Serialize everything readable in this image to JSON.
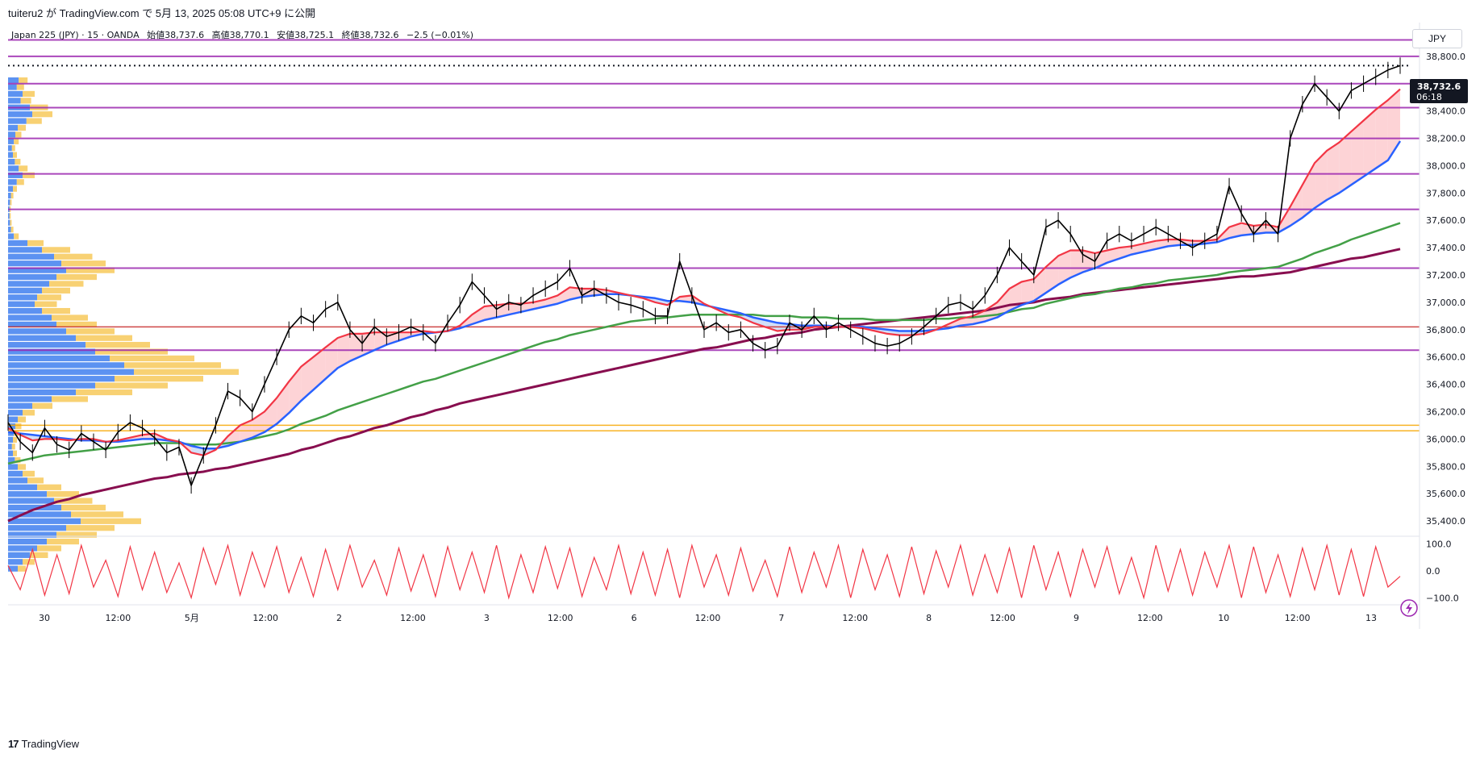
{
  "header": {
    "text": "tuiteru2 が TradingView.com で 5月 13, 2025 05:08 UTC+9 に公開"
  },
  "legend": {
    "symbol": "Japan 225 (JPY) · 15 · OANDA",
    "open": "始値38,737.6",
    "high": "高値38,770.1",
    "low": "安値38,725.1",
    "close": "終値38,732.6",
    "change": "−2.5 (−0.01%)"
  },
  "currency": "JPY",
  "price_tag": {
    "price": "38,732.6",
    "countdown": "06:18"
  },
  "footer": {
    "brand": "TradingView",
    "logo_icon": "tradingview-logo-icon"
  },
  "colors": {
    "candle": "#000000",
    "ema_fast": "#f23645",
    "ema_mid": "#2962ff",
    "ema_slow": "#43a047",
    "ema_long": "#880e4f",
    "hline": "#9c27b0",
    "oscillator": "#f23645",
    "fill_up": "#fcc8cc",
    "fill_down": "#c6d7f5",
    "vp_up": "#4a86f0",
    "vp_down": "#f7c95a"
  },
  "chart_data": [
    {
      "type": "line",
      "panel": "price",
      "ylim": [
        35300,
        39000
      ],
      "y_ticks": [
        "38,800.0",
        "38,600.0",
        "38,400.0",
        "38,200.0",
        "38,000.0",
        "37,800.0",
        "37,600.0",
        "37,400.0",
        "37,200.0",
        "37,000.0",
        "36,800.0",
        "36,600.0",
        "36,400.0",
        "36,200.0",
        "36,000.0",
        "35,800.0",
        "35,600.0",
        "35,400.0"
      ],
      "x_labels": [
        "30",
        "12:00",
        "5月",
        "12:00",
        "2",
        "12:00",
        "3",
        "12:00",
        "6",
        "12:00",
        "7",
        "12:00",
        "8",
        "12:00",
        "9",
        "12:00",
        "10",
        "12:00",
        "13"
      ],
      "horizontal_lines": [
        38920,
        38800,
        38600,
        38425,
        38200,
        37940,
        37680,
        37250,
        36820,
        36650,
        36100,
        36060
      ],
      "last_price": 38732.6,
      "series": [
        {
          "name": "",
          "role": "price",
          "values": [
            36120,
            35980,
            35900,
            36080,
            35960,
            35920,
            36040,
            35980,
            35920,
            36050,
            36120,
            36080,
            36010,
            35900,
            35940,
            35660,
            35880,
            36100,
            36350,
            36300,
            36200,
            36400,
            36600,
            36800,
            36900,
            36850,
            36950,
            37000,
            36800,
            36700,
            36820,
            36750,
            36780,
            36820,
            36780,
            36700,
            36850,
            36980,
            37150,
            37050,
            36950,
            37000,
            36980,
            37050,
            37100,
            37150,
            37250,
            37050,
            37100,
            37050,
            37000,
            36980,
            36950,
            36900,
            36900,
            37300,
            37050,
            36800,
            36850,
            36780,
            36800,
            36700,
            36650,
            36680,
            36850,
            36800,
            36900,
            36800,
            36850,
            36800,
            36750,
            36700,
            36680,
            36700,
            36750,
            36820,
            36900,
            36980,
            37000,
            36950,
            37050,
            37200,
            37400,
            37300,
            37200,
            37550,
            37600,
            37500,
            37350,
            37300,
            37450,
            37500,
            37450,
            37500,
            37550,
            37500,
            37450,
            37400,
            37450,
            37500,
            37850,
            37650,
            37500,
            37600,
            37500,
            38200,
            38450,
            38600,
            38500,
            38400,
            38550,
            38600,
            38650,
            38700,
            38732
          ]
        },
        {
          "name": "",
          "role": "ema_fast",
          "values": [
            36080,
            36030,
            35990,
            36000,
            36000,
            35990,
            36000,
            36000,
            35980,
            35990,
            36010,
            36030,
            36040,
            36000,
            35980,
            35900,
            35880,
            35920,
            36020,
            36100,
            36140,
            36200,
            36300,
            36420,
            36530,
            36600,
            36670,
            36740,
            36770,
            36770,
            36780,
            36780,
            36780,
            36780,
            36790,
            36780,
            36790,
            36830,
            36910,
            36970,
            36980,
            36990,
            36990,
            37000,
            37020,
            37050,
            37110,
            37100,
            37100,
            37090,
            37070,
            37050,
            37030,
            37000,
            36980,
            37040,
            37050,
            36990,
            36950,
            36910,
            36890,
            36850,
            36820,
            36790,
            36800,
            36800,
            36820,
            36820,
            36820,
            36820,
            36810,
            36790,
            36770,
            36760,
            36760,
            36770,
            36800,
            36840,
            36880,
            36900,
            36940,
            37000,
            37100,
            37150,
            37170,
            37260,
            37340,
            37380,
            37380,
            37360,
            37380,
            37400,
            37410,
            37430,
            37450,
            37460,
            37460,
            37450,
            37450,
            37460,
            37550,
            37580,
            37560,
            37570,
            37550,
            37700,
            37860,
            38020,
            38110,
            38170,
            38250,
            38330,
            38410,
            38480,
            38560
          ]
        },
        {
          "name": "",
          "role": "ema_mid",
          "values": [
            36050,
            36040,
            36030,
            36020,
            36010,
            36000,
            35990,
            35990,
            35980,
            35980,
            35990,
            36000,
            36000,
            35990,
            35980,
            35950,
            35930,
            35930,
            35950,
            35980,
            36010,
            36050,
            36110,
            36190,
            36280,
            36360,
            36440,
            36520,
            36570,
            36610,
            36650,
            36690,
            36720,
            36750,
            36770,
            36780,
            36790,
            36810,
            36840,
            36870,
            36890,
            36910,
            36930,
            36950,
            36970,
            36990,
            37020,
            37040,
            37050,
            37060,
            37060,
            37050,
            37040,
            37030,
            37010,
            37010,
            37000,
            36980,
            36960,
            36940,
            36920,
            36890,
            36870,
            36850,
            36840,
            36830,
            36830,
            36830,
            36820,
            36820,
            36820,
            36810,
            36800,
            36790,
            36790,
            36790,
            36800,
            36810,
            36830,
            36840,
            36860,
            36890,
            36940,
            36980,
            37010,
            37070,
            37130,
            37180,
            37220,
            37250,
            37290,
            37320,
            37350,
            37370,
            37390,
            37410,
            37420,
            37420,
            37430,
            37440,
            37470,
            37490,
            37500,
            37510,
            37510,
            37560,
            37620,
            37690,
            37750,
            37800,
            37860,
            37920,
            37980,
            38040,
            38180
          ]
        },
        {
          "name": "",
          "role": "ema_slow",
          "values": [
            35820,
            35840,
            35860,
            35880,
            35890,
            35900,
            35910,
            35920,
            35930,
            35940,
            35950,
            35960,
            35970,
            35970,
            35970,
            35960,
            35960,
            35960,
            35970,
            35980,
            36000,
            36020,
            36040,
            36070,
            36110,
            36140,
            36170,
            36210,
            36240,
            36270,
            36300,
            36330,
            36360,
            36390,
            36420,
            36440,
            36470,
            36500,
            36530,
            36560,
            36590,
            36620,
            36650,
            36680,
            36710,
            36730,
            36760,
            36780,
            36800,
            36820,
            36840,
            36860,
            36870,
            36880,
            36890,
            36900,
            36910,
            36910,
            36910,
            36910,
            36910,
            36910,
            36900,
            36900,
            36900,
            36890,
            36890,
            36890,
            36880,
            36880,
            36880,
            36870,
            36870,
            36870,
            36870,
            36870,
            36880,
            36880,
            36890,
            36890,
            36900,
            36910,
            36930,
            36950,
            36960,
            36990,
            37010,
            37030,
            37050,
            37060,
            37080,
            37100,
            37110,
            37130,
            37140,
            37160,
            37170,
            37180,
            37190,
            37200,
            37220,
            37230,
            37240,
            37250,
            37260,
            37290,
            37320,
            37360,
            37390,
            37420,
            37460,
            37490,
            37520,
            37550,
            37580
          ]
        },
        {
          "name": "",
          "role": "ema_long",
          "values": [
            35400,
            35440,
            35480,
            35510,
            35540,
            35560,
            35590,
            35610,
            35630,
            35650,
            35670,
            35690,
            35710,
            35720,
            35740,
            35750,
            35760,
            35780,
            35790,
            35810,
            35830,
            35850,
            35870,
            35890,
            35920,
            35940,
            35970,
            36000,
            36020,
            36050,
            36080,
            36100,
            36130,
            36160,
            36180,
            36210,
            36230,
            36260,
            36280,
            36300,
            36320,
            36340,
            36360,
            36380,
            36400,
            36420,
            36440,
            36460,
            36480,
            36500,
            36520,
            36540,
            36560,
            36580,
            36600,
            36620,
            36640,
            36660,
            36670,
            36690,
            36710,
            36730,
            36740,
            36760,
            36770,
            36780,
            36800,
            36810,
            36820,
            36830,
            36840,
            36850,
            36860,
            36870,
            36880,
            36890,
            36900,
            36910,
            36920,
            36930,
            36940,
            36960,
            36980,
            36990,
            37000,
            37020,
            37030,
            37040,
            37060,
            37070,
            37080,
            37090,
            37100,
            37110,
            37120,
            37130,
            37140,
            37150,
            37160,
            37170,
            37180,
            37190,
            37190,
            37200,
            37210,
            37220,
            37240,
            37260,
            37280,
            37300,
            37320,
            37330,
            37350,
            37370,
            37390
          ]
        }
      ]
    },
    {
      "type": "line",
      "panel": "oscillator",
      "ylim": [
        -120,
        120
      ],
      "y_ticks": [
        "100.0",
        "0.0",
        "−100.0"
      ],
      "series": [
        {
          "name": "",
          "values": [
            20,
            -70,
            80,
            -90,
            60,
            -85,
            95,
            -60,
            40,
            -95,
            90,
            -70,
            70,
            -80,
            30,
            -100,
            85,
            -50,
            95,
            -90,
            70,
            -60,
            90,
            -80,
            50,
            -95,
            80,
            -70,
            95,
            -60,
            40,
            -90,
            85,
            -75,
            60,
            -95,
            90,
            -70,
            70,
            -80,
            95,
            -100,
            60,
            -80,
            90,
            -65,
            85,
            -95,
            50,
            -70,
            95,
            -85,
            70,
            -90,
            80,
            -100,
            95,
            -60,
            60,
            -90,
            85,
            -75,
            40,
            -95,
            90,
            -80,
            70,
            -60,
            95,
            -100,
            80,
            -70,
            60,
            -95,
            90,
            -85,
            75,
            -60,
            95,
            -90,
            60,
            -80,
            85,
            -100,
            95,
            -70,
            70,
            -95,
            80,
            -60,
            90,
            -85,
            50,
            -100,
            95,
            -75,
            80,
            -90,
            70,
            -60,
            95,
            -100,
            90,
            -80,
            60,
            -95,
            85,
            -70,
            95,
            -90,
            80,
            -95,
            90,
            -60,
            -20
          ]
        }
      ]
    }
  ]
}
